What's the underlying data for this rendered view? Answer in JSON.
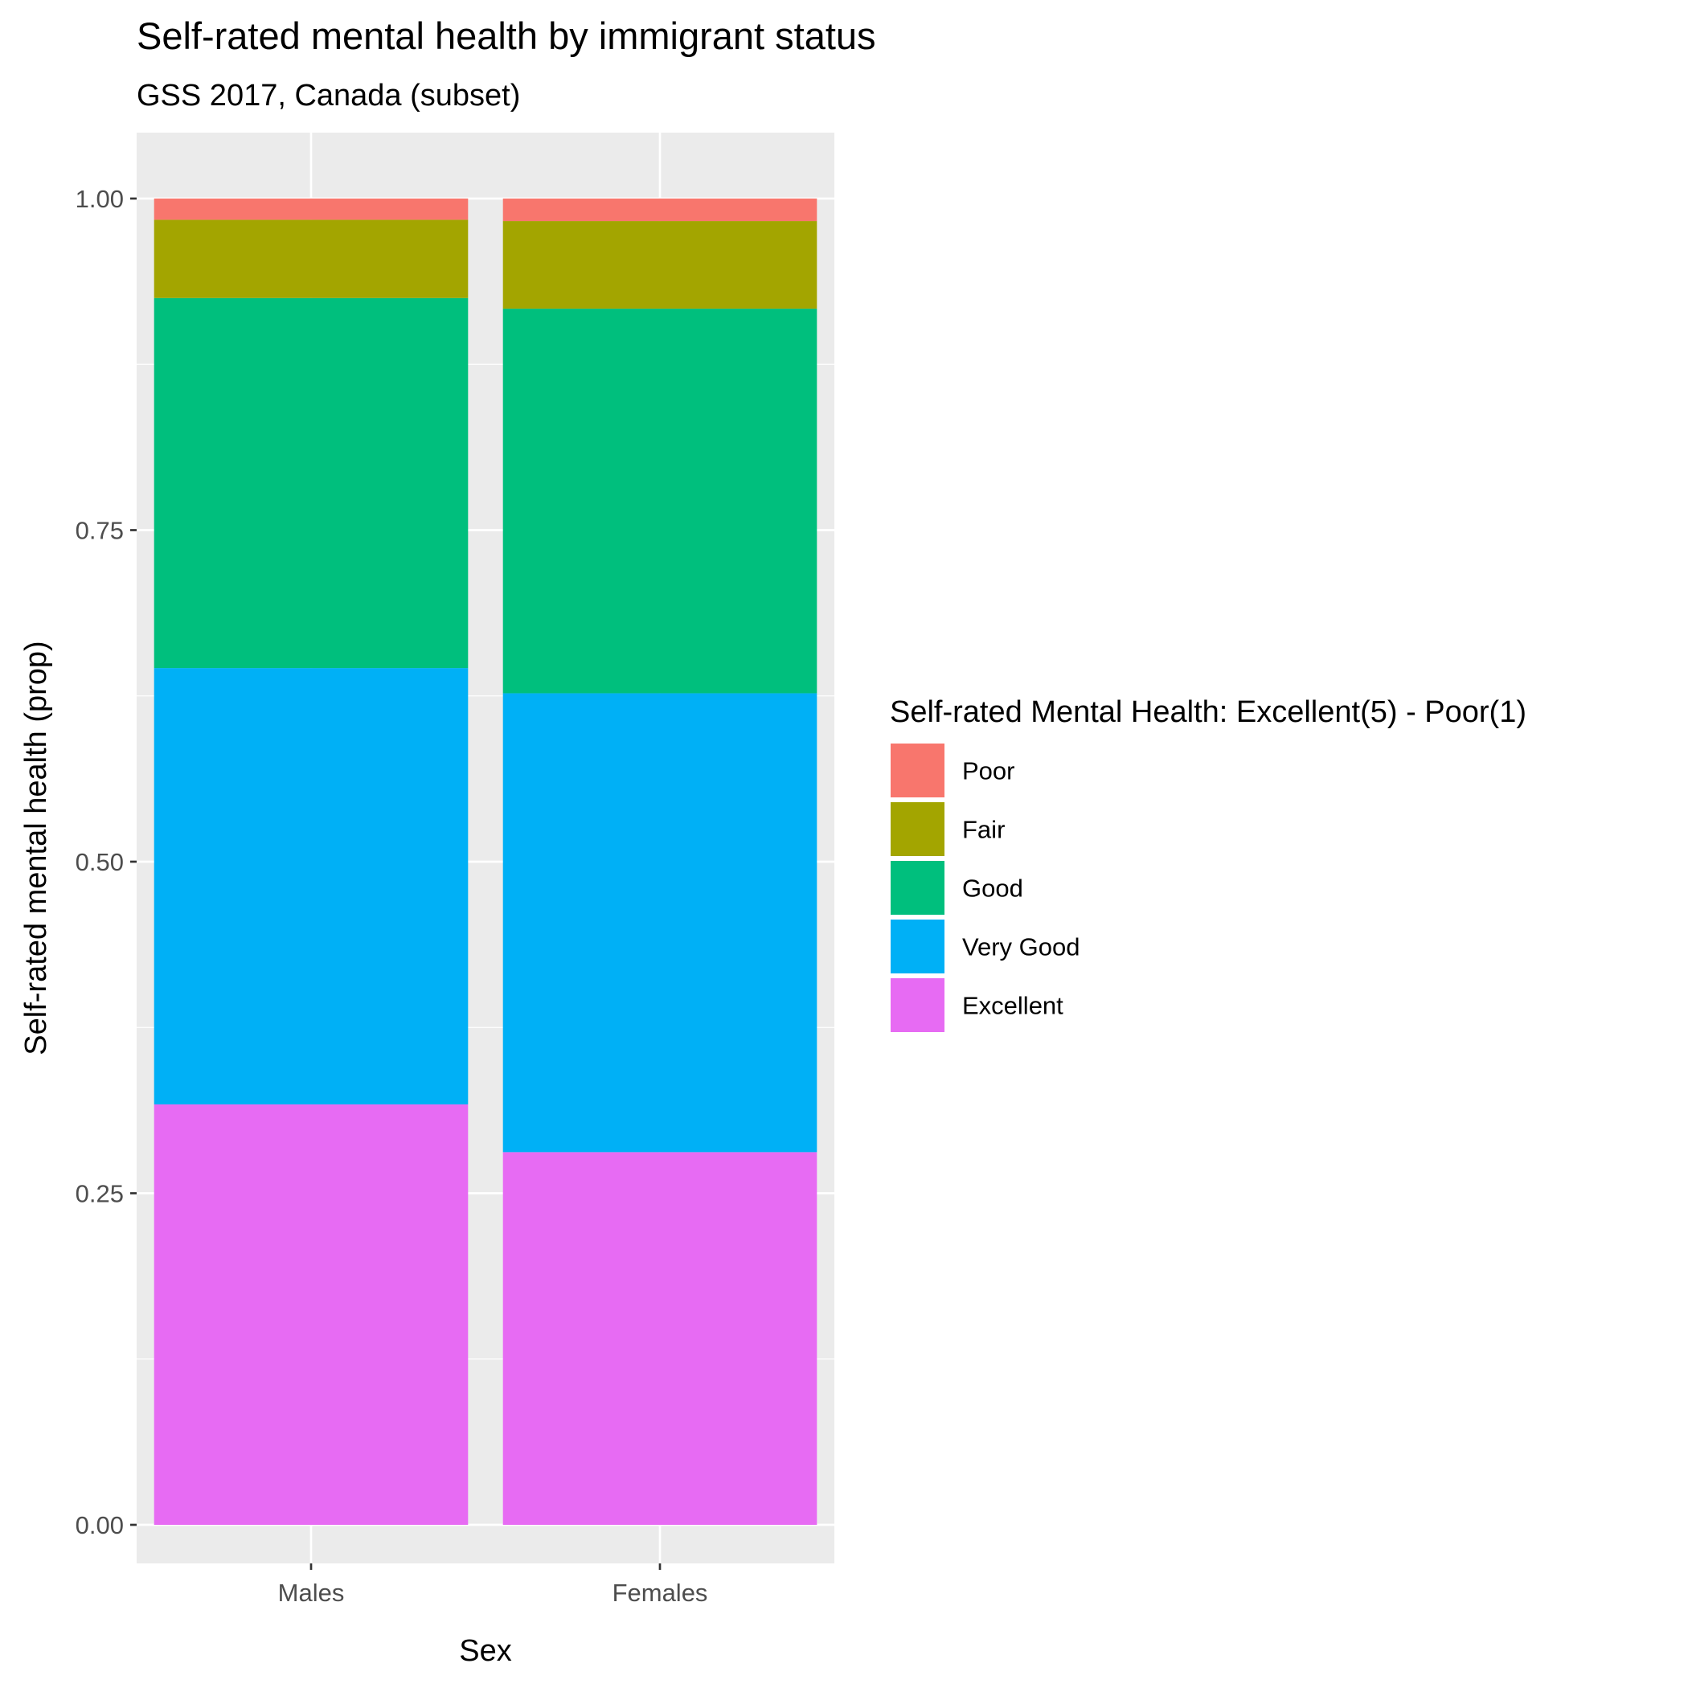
{
  "chart_data": {
    "type": "bar",
    "stacked": true,
    "title": "Self-rated mental health by immigrant status",
    "subtitle": "GSS 2017, Canada (subset)",
    "xlabel": "Sex",
    "ylabel": "Self-rated mental health (prop)",
    "categories": [
      "Males",
      "Females"
    ],
    "ylim": [
      0,
      1
    ],
    "yticks": [
      0,
      0.25,
      0.5,
      0.75,
      1
    ],
    "ytick_labels": [
      "0.00",
      "0.25",
      "0.50",
      "0.75",
      "1.00"
    ],
    "grid": true,
    "legend": {
      "title": "Self-rated Mental Health: Excellent(5) - Poor(1)",
      "placement": "right"
    },
    "series": [
      {
        "name": "Poor",
        "color": "#F8766D",
        "values": [
          0.016,
          0.017
        ]
      },
      {
        "name": "Fair",
        "color": "#A3A500",
        "values": [
          0.059,
          0.066
        ]
      },
      {
        "name": "Good",
        "color": "#00BF7D",
        "values": [
          0.279,
          0.29
        ]
      },
      {
        "name": "Very Good",
        "color": "#00B0F6",
        "values": [
          0.329,
          0.346
        ]
      },
      {
        "name": "Excellent",
        "color": "#E76BF3",
        "values": [
          0.317,
          0.281
        ]
      }
    ]
  }
}
